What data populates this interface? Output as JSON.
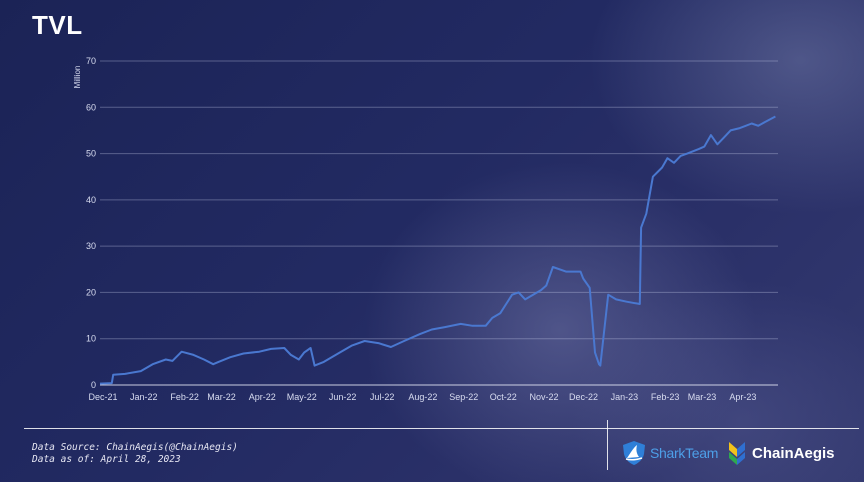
{
  "header": {
    "title": "TVL"
  },
  "chart_data": {
    "type": "line",
    "ylabel": "Million",
    "ylim": [
      0,
      70
    ],
    "yticks": [
      "0",
      "10",
      "20",
      "30",
      "40",
      "50",
      "60",
      "70"
    ],
    "x_tick_labels": [
      "Dec-21",
      "Jan-22",
      "Feb-22",
      "Mar-22",
      "Apr-22",
      "May-22",
      "Jun-22",
      "Jul-22",
      "Aug-22",
      "Sep-22",
      "Oct-22",
      "Nov-22",
      "Dec-22",
      "Jan-23",
      "Feb-23",
      "Mar-23",
      "Apr-23"
    ],
    "grid": true,
    "line_color": "#4a78d0",
    "series": [
      {
        "x": [
          "2021-12-01",
          "2021-12-10",
          "2021-12-11",
          "2021-12-20",
          "2022-01-01",
          "2022-01-10",
          "2022-01-20",
          "2022-01-25",
          "2022-02-01",
          "2022-02-10",
          "2022-02-18",
          "2022-02-25",
          "2022-03-01",
          "2022-03-10",
          "2022-03-20",
          "2022-04-01",
          "2022-04-10",
          "2022-04-20",
          "2022-04-25",
          "2022-05-01",
          "2022-05-05",
          "2022-05-10",
          "2022-05-13",
          "2022-05-20",
          "2022-06-01",
          "2022-06-10",
          "2022-06-20",
          "2022-07-01",
          "2022-07-10",
          "2022-07-20",
          "2022-08-01",
          "2022-08-10",
          "2022-08-20",
          "2022-09-01",
          "2022-09-10",
          "2022-09-20",
          "2022-09-25",
          "2022-10-01",
          "2022-10-10",
          "2022-10-15",
          "2022-10-20",
          "2022-11-01",
          "2022-11-05",
          "2022-11-10",
          "2022-11-20",
          "2022-12-01",
          "2022-12-03",
          "2022-12-08",
          "2022-12-12",
          "2022-12-15",
          "2022-12-16",
          "2022-12-22",
          "2022-12-28",
          "2023-01-05",
          "2023-01-15",
          "2023-01-16",
          "2023-01-20",
          "2023-01-25",
          "2023-02-01",
          "2023-02-05",
          "2023-02-10",
          "2023-02-15",
          "2023-02-20",
          "2023-03-01",
          "2023-03-05",
          "2023-03-10",
          "2023-03-15",
          "2023-03-20",
          "2023-03-25",
          "2023-04-01",
          "2023-04-10",
          "2023-04-15",
          "2023-04-20",
          "2023-04-28"
        ],
        "values": [
          0.3,
          0.4,
          2.2,
          2.4,
          3.0,
          4.5,
          5.5,
          5.2,
          7.2,
          6.5,
          5.5,
          4.5,
          5.0,
          6.0,
          6.8,
          7.2,
          7.8,
          8.0,
          6.5,
          5.5,
          7.0,
          8.0,
          4.2,
          5.0,
          7.0,
          8.5,
          9.5,
          9.0,
          8.2,
          9.5,
          11.0,
          12.0,
          12.5,
          13.2,
          12.8,
          12.8,
          14.5,
          15.5,
          19.5,
          20.0,
          18.5,
          20.5,
          21.5,
          25.5,
          24.5,
          24.5,
          23.0,
          21.0,
          7.0,
          4.5,
          4.2,
          19.5,
          18.5,
          18.0,
          17.5,
          34.0,
          37.0,
          45.0,
          47.0,
          49.0,
          48.0,
          49.5,
          50.0,
          51.0,
          51.5,
          54.0,
          52.0,
          53.5,
          55.0,
          55.5,
          56.5,
          56.0,
          56.8,
          58.0
        ]
      }
    ]
  },
  "footer": {
    "source_line": "Data Source: ChainAegis(@ChainAegis)",
    "date_line": "Data as of: April 28, 2023",
    "logo_shark": "SharkTeam",
    "logo_chain": "ChainAegis"
  }
}
